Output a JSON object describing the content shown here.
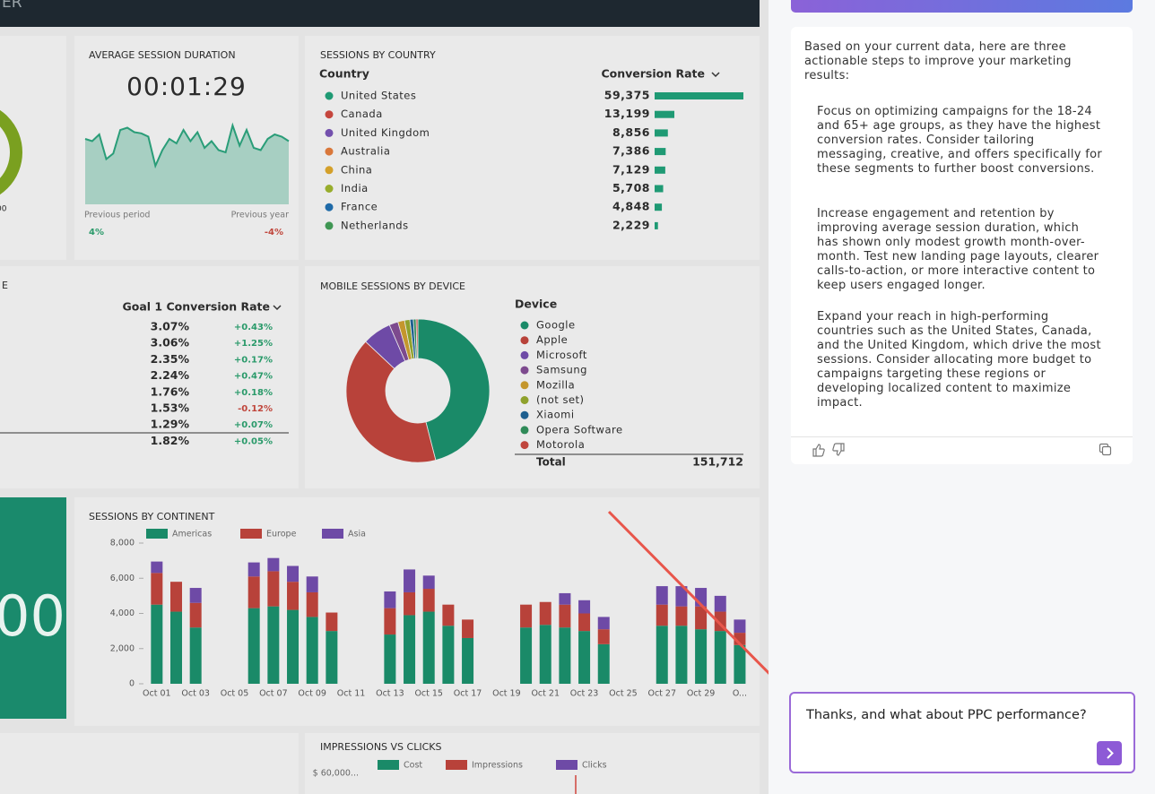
{
  "header": {
    "title": "ER"
  },
  "gauge": {
    "label": "00"
  },
  "avg_session": {
    "title": "AVERAGE SESSION DURATION",
    "value": "00:01:29",
    "trend": {
      "type": "line",
      "color": "#2a9d78",
      "values": [
        88,
        86,
        92,
        70,
        75,
        96,
        98,
        94,
        93,
        90,
        64,
        78,
        88,
        84,
        96,
        86,
        94,
        80,
        86,
        78,
        76,
        100,
        82,
        96,
        80,
        78,
        88,
        92,
        90,
        86
      ]
    },
    "previous_period_label": "Previous period",
    "previous_period_change": "4%",
    "previous_year_label": "Previous year",
    "previous_year_change": "-4%"
  },
  "country": {
    "title": "SESSIONS BY COUNTRY",
    "column_name": "Country",
    "column_value": "Conversion Rate",
    "bar_color": "#1f9a74",
    "names": [
      "United States",
      "Canada",
      "United Kingdom",
      "Australia",
      "China",
      "India",
      "France",
      "Netherlands"
    ],
    "colors": [
      "#1f9a74",
      "#c5463d",
      "#7350ad",
      "#d9773a",
      "#d4a02a",
      "#98ad2c",
      "#1f6aa8",
      "#3f9653"
    ],
    "values": [
      59375,
      13199,
      8856,
      7386,
      7129,
      5708,
      4848,
      2229
    ],
    "value_labels": [
      "59,375",
      "13,199",
      "8,856",
      "7,386",
      "7,129",
      "5,708",
      "4,848",
      "2,229"
    ]
  },
  "goal": {
    "title": "E",
    "column": "Goal 1 Conversion Rate",
    "rates": [
      "3.07%",
      "3.06%",
      "2.35%",
      "2.24%",
      "1.76%",
      "1.53%",
      "1.29%",
      "1.82%"
    ],
    "changes": [
      "+0.43%",
      "+1.25%",
      "+0.17%",
      "+0.47%",
      "+0.18%",
      "-0.12%",
      "+0.07%",
      "+0.05%"
    ]
  },
  "devices": {
    "type": "donut",
    "title": "MOBILE SESSIONS BY DEVICE",
    "column": "Device",
    "names": [
      "Google",
      "Apple",
      "Microsoft",
      "Samsung",
      "Mozilla",
      "(not set)",
      "Xiaomi",
      "Opera Software",
      "Motorola"
    ],
    "colors": [
      "#1a8a68",
      "#b8423a",
      "#6e4aa6",
      "#7d4a8e",
      "#c4962c",
      "#8fa12c",
      "#1d5f8f",
      "#2f8a58",
      "#c0453c"
    ],
    "values": [
      69800,
      62200,
      9860,
      3030,
      2280,
      1820,
      1210,
      910,
      602
    ],
    "total_label": "Total",
    "total": {
      "value": 151712,
      "label": "151,712"
    }
  },
  "tile": {
    "value": "00"
  },
  "continent": {
    "type": "bar",
    "stacked": true,
    "title": "SESSIONS BY CONTINENT",
    "categories": [
      "Oct 01",
      null,
      "Oct 03",
      null,
      "Oct 05",
      null,
      "Oct 07",
      null,
      "Oct 09",
      null,
      "Oct 11",
      null,
      "Oct 13",
      null,
      "Oct 15",
      null,
      "Oct 17",
      null,
      "Oct 19",
      null,
      "Oct 21",
      null,
      "Oct 23",
      null,
      "Oct 25",
      null,
      "Oct 27",
      null,
      "Oct 29",
      null,
      "O..."
    ],
    "series": [
      {
        "name": "Americas",
        "color": "#1a8a68",
        "values": [
          4500,
          4100,
          3200,
          0,
          0,
          4300,
          4400,
          4200,
          3800,
          3000,
          0,
          0,
          2800,
          3900,
          4100,
          3300,
          2600,
          0,
          0,
          3200,
          3350,
          3200,
          3000,
          2250,
          0,
          0,
          3300,
          3300,
          3100,
          3000,
          2200
        ]
      },
      {
        "name": "Europe",
        "color": "#b8423a",
        "values": [
          1800,
          1700,
          1400,
          0,
          0,
          1800,
          2000,
          1600,
          1400,
          1050,
          0,
          0,
          1500,
          1300,
          1300,
          1200,
          1050,
          0,
          0,
          1300,
          1300,
          1300,
          1000,
          850,
          0,
          0,
          1200,
          1100,
          1300,
          1100,
          700
        ]
      },
      {
        "name": "Asia",
        "color": "#6e4aa6",
        "values": [
          650,
          0,
          850,
          0,
          0,
          800,
          750,
          900,
          900,
          0,
          0,
          0,
          950,
          1300,
          750,
          0,
          0,
          0,
          0,
          0,
          0,
          650,
          750,
          700,
          0,
          0,
          1050,
          1150,
          1050,
          900,
          750
        ]
      }
    ],
    "ylim": [
      0,
      8000
    ],
    "yticks": [
      0,
      {
        "value": 2000,
        "label": "2,000"
      },
      {
        "value": 4000,
        "label": "4,000"
      },
      {
        "value": 6000,
        "label": "6,000"
      },
      {
        "value": 8000,
        "label": "8,000"
      }
    ]
  },
  "impressions": {
    "title": "IMPRESSIONS VS CLICKS",
    "legend": [
      {
        "name": "Cost",
        "color": "#1a8a68"
      },
      {
        "name": "Impressions",
        "color": "#b8423a"
      },
      {
        "name": "Clicks",
        "color": "#6e4aa6"
      }
    ],
    "axis_top_label": "$ 60,000..."
  },
  "chat": {
    "intro": "Based on your current data, here are three actionable steps to improve your marketing results:",
    "steps": [
      "Focus on optimizing campaigns for the 18-24 and 65+ age groups, as they have the highest conversion rates. Consider tailoring messaging, creative, and offers specifically for these segments to further boost conversions.",
      "Increase engagement and retention by improving average session duration, which has shown only modest growth month-over-month. Test new landing page layouts, clearer calls-to-action, or more interactive content to keep users engaged longer.",
      "Expand your reach in high-performing countries such as the United States, Canada, and the United Kingdom, which drive the most sessions. Consider allocating more budget to campaigns targeting these regions or developing localized content to maximize impact."
    ],
    "input": "Thanks, and what about PPC performance?"
  }
}
